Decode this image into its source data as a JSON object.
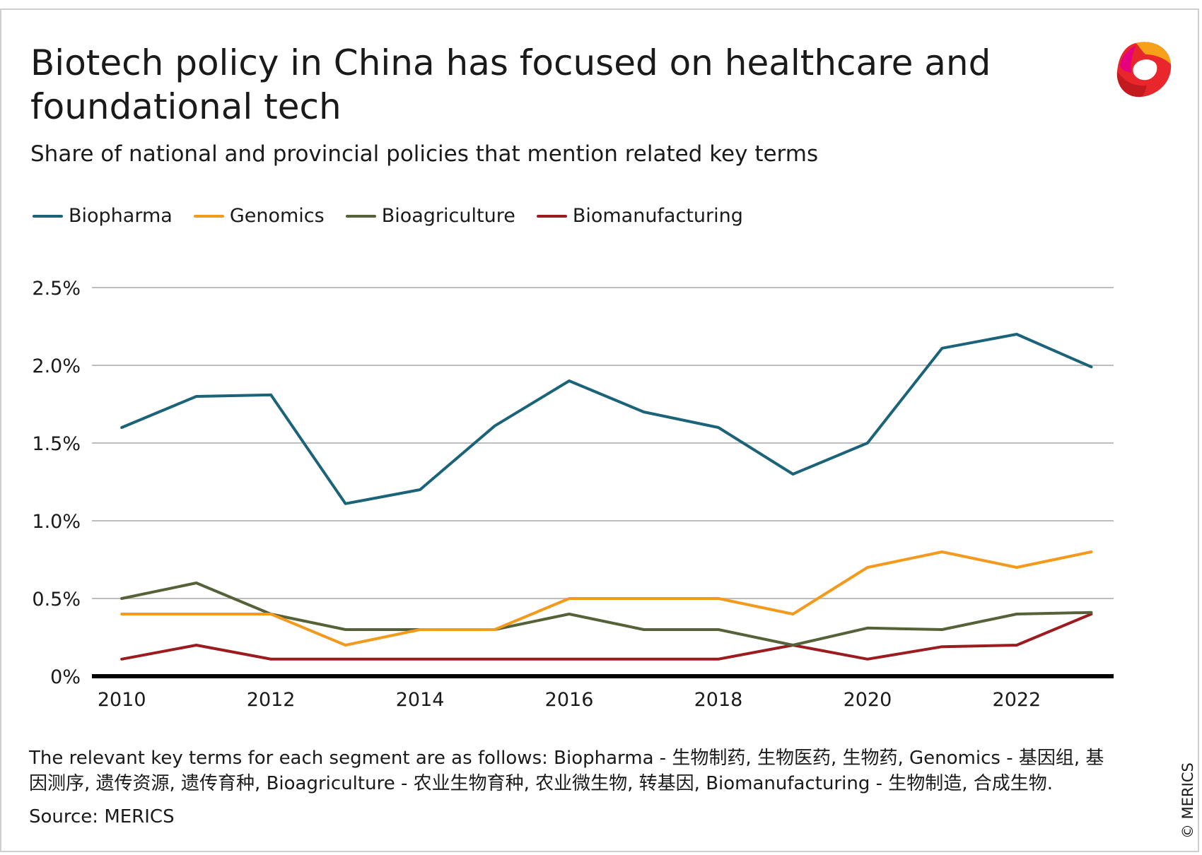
{
  "header": {
    "title": "Biotech policy in China has focused on healthcare and foundational tech",
    "subtitle": "Share of national and provincial policies that mention related key terms"
  },
  "logo": {
    "icon": "merics-logo-icon"
  },
  "chart_data": {
    "type": "line",
    "title": "Biotech policy in China has focused on healthcare and foundational tech",
    "subtitle": "Share of national and provincial policies that mention related key terms",
    "x": [
      2010,
      2011,
      2012,
      2013,
      2014,
      2015,
      2016,
      2017,
      2018,
      2019,
      2020,
      2021,
      2022,
      2023
    ],
    "x_ticks": [
      2010,
      2012,
      2014,
      2016,
      2018,
      2020,
      2022
    ],
    "x_tick_labels": [
      "2010",
      "2012",
      "2014",
      "2016",
      "2018",
      "2020",
      "2022"
    ],
    "y_ticks": [
      0,
      0.5,
      1.0,
      1.5,
      2.0,
      2.5
    ],
    "y_tick_labels": [
      "0%",
      "0.5%",
      "1.0%",
      "1.5%",
      "2.0%",
      "2.5%"
    ],
    "ylim": [
      0,
      2.5
    ],
    "xlim": [
      2009.6,
      2023.3
    ],
    "xlabel": "",
    "ylabel": "",
    "grid": true,
    "legend_position": "top-left",
    "series": [
      {
        "name": "Biopharma",
        "color": "#1b6378",
        "values": [
          1.6,
          1.8,
          1.81,
          1.11,
          1.2,
          1.61,
          1.9,
          1.7,
          1.6,
          1.3,
          1.5,
          2.11,
          2.2,
          1.99
        ]
      },
      {
        "name": "Genomics",
        "color": "#f39a1c",
        "values": [
          0.4,
          0.4,
          0.4,
          0.2,
          0.3,
          0.3,
          0.5,
          0.5,
          0.5,
          0.4,
          0.7,
          0.8,
          0.7,
          0.8
        ]
      },
      {
        "name": "Bioagriculture",
        "color": "#556238",
        "values": [
          0.5,
          0.6,
          0.4,
          0.3,
          0.3,
          0.3,
          0.4,
          0.3,
          0.3,
          0.2,
          0.31,
          0.3,
          0.4,
          0.41
        ]
      },
      {
        "name": "Biomanufacturing",
        "color": "#9b1b1f",
        "values": [
          0.11,
          0.2,
          0.11,
          0.11,
          0.11,
          0.11,
          0.11,
          0.11,
          0.11,
          0.2,
          0.11,
          0.19,
          0.2,
          0.4
        ]
      }
    ]
  },
  "footer": {
    "note": "The relevant key terms for each segment are as follows: Biopharma - 生物制药, 生物医药, 生物药, Genomics - 基因组, 基因测序, 遗传资源, 遗传育种, Bioagriculture - 农业生物育种, 农业微生物, 转基因, Biomanufacturing - 生物制造, 合成生物.",
    "source": "Source: MERICS",
    "copyright": "© MERICS"
  }
}
